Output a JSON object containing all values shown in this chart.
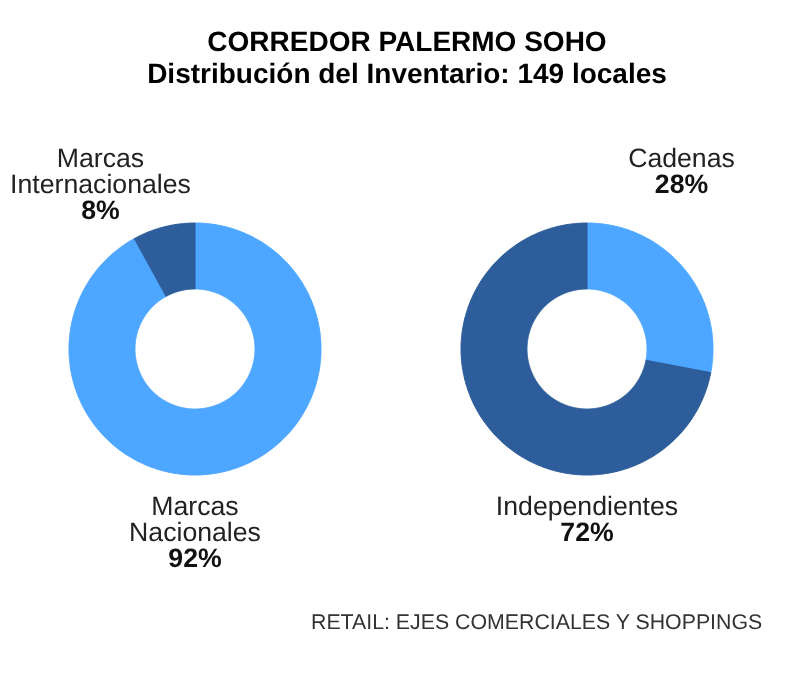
{
  "chart_data": [
    {
      "type": "donut",
      "title": "CORREDOR PALERMO SOHO",
      "subtitle": "Distribución del Inventario: 149 locales",
      "categories": [
        "Marcas Nacionales",
        "Marcas Internacionales"
      ],
      "values": [
        92,
        8
      ],
      "colors": [
        "#4da6ff",
        "#2d5d9a"
      ],
      "value_labels": [
        "92%",
        "8%"
      ]
    },
    {
      "type": "donut",
      "categories": [
        "Cadenas",
        "Independientes"
      ],
      "values": [
        28,
        72
      ],
      "colors": [
        "#4da6ff",
        "#2d5d9a"
      ],
      "value_labels": [
        "28%",
        "72%"
      ],
      "annotations": [
        "RETAIL: EJES COMERCIALES Y SHOPPINGS"
      ]
    }
  ]
}
